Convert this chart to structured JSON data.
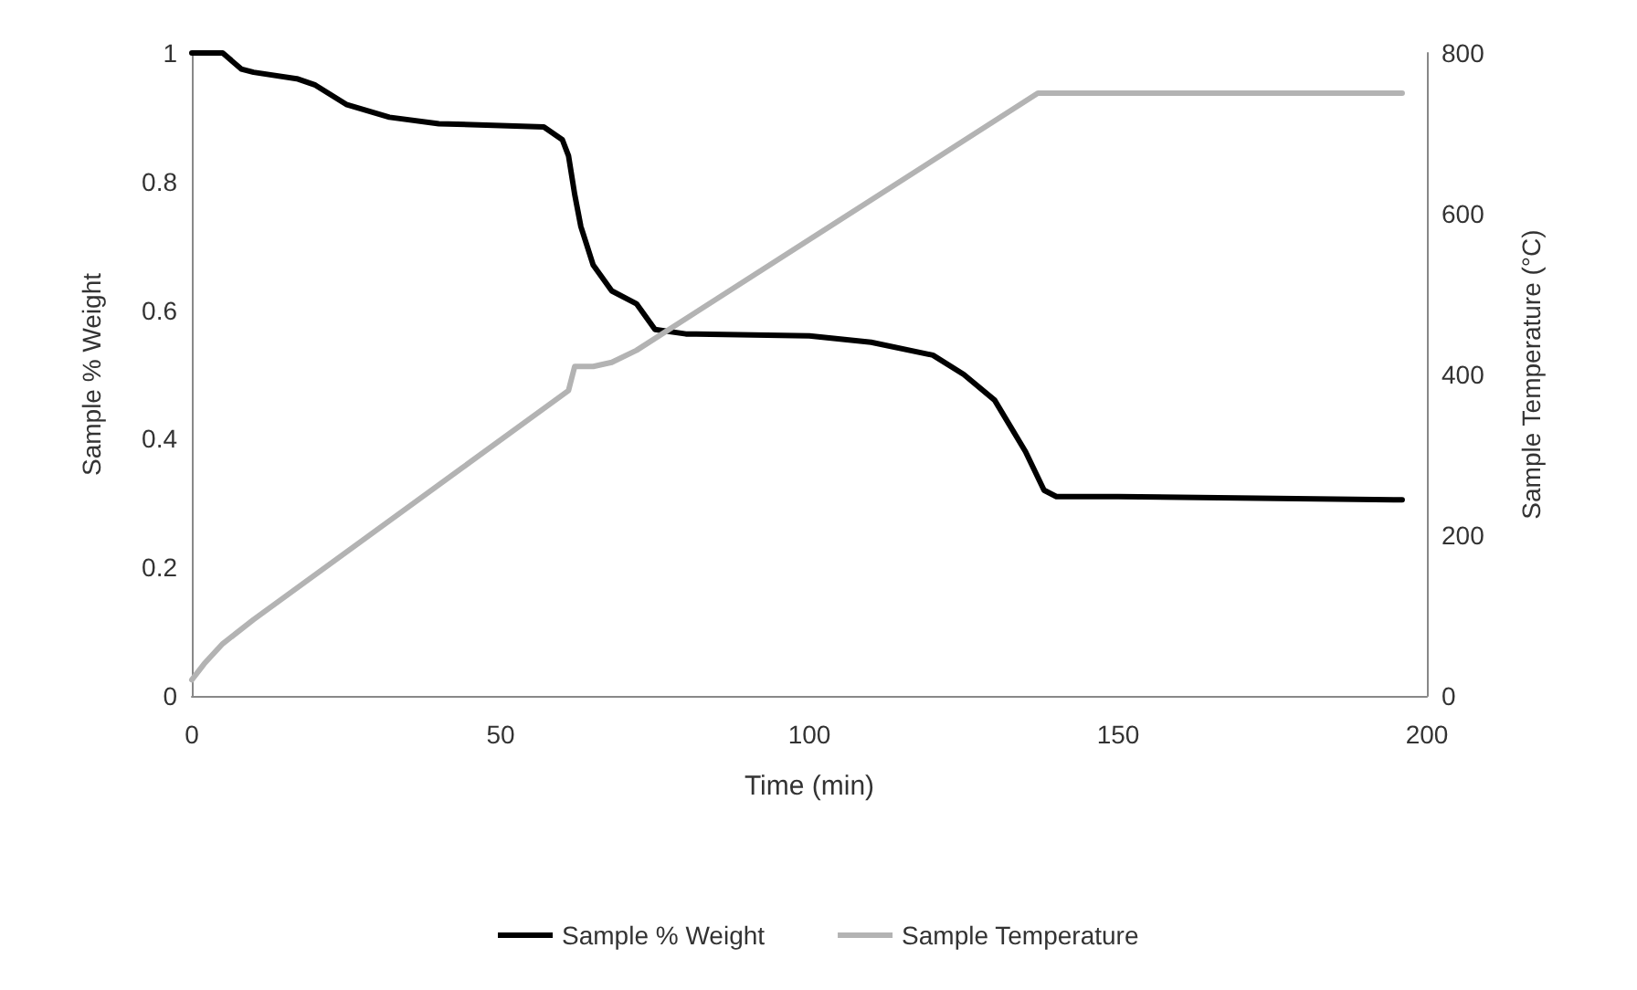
{
  "chart_data": {
    "type": "line",
    "xlabel": "Time (min)",
    "ylabel": "Sample % Weight",
    "y2label": "Sample Temperature (°C)",
    "xlim": [
      0,
      200
    ],
    "xticks": [
      0,
      50,
      100,
      150,
      200
    ],
    "ylim": [
      0,
      1
    ],
    "yticks": [
      0,
      0.2,
      0.4,
      0.6,
      0.8,
      1
    ],
    "y2lim": [
      0,
      800
    ],
    "y2ticks": [
      0,
      200,
      400,
      600,
      800
    ],
    "grid": false,
    "legend": "bottom",
    "marker": "none",
    "line_style": "solid",
    "series": [
      {
        "name": "Sample % Weight",
        "color": "#000000",
        "x": [
          0,
          5,
          8,
          10,
          17,
          20,
          25,
          32,
          40,
          50,
          57,
          60,
          61,
          62,
          63,
          65,
          68,
          72,
          75,
          80,
          100,
          110,
          120,
          125,
          130,
          135,
          138,
          140,
          150,
          196
        ],
        "values": [
          1.0,
          1.0,
          0.975,
          0.97,
          0.96,
          0.95,
          0.92,
          0.9,
          0.89,
          0.887,
          0.885,
          0.865,
          0.84,
          0.78,
          0.73,
          0.67,
          0.63,
          0.61,
          0.57,
          0.563,
          0.56,
          0.55,
          0.53,
          0.5,
          0.46,
          0.38,
          0.32,
          0.31,
          0.31,
          0.305
        ]
      },
      {
        "name": "Sample Temperature",
        "color": "#b3b3b3",
        "axis": "y2",
        "x": [
          0,
          2,
          5,
          10,
          61,
          62,
          65,
          68,
          72,
          137,
          196
        ],
        "values": [
          20,
          40,
          65,
          95,
          380,
          410,
          410,
          415,
          430,
          750,
          750
        ]
      }
    ]
  }
}
